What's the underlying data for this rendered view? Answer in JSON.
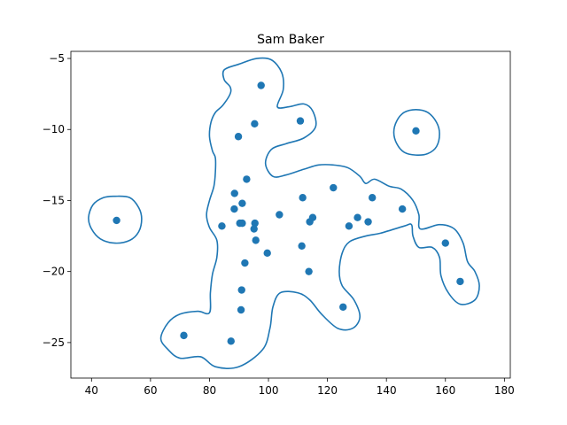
{
  "chart_data": {
    "type": "scatter",
    "title": "Sam Baker",
    "xlabel": "",
    "ylabel": "",
    "xlim": [
      33,
      182
    ],
    "ylim": [
      -27.5,
      -4.5
    ],
    "xticks": [
      40,
      60,
      80,
      100,
      120,
      140,
      160,
      180
    ],
    "yticks": [
      -25,
      -20,
      -15,
      -10,
      -5
    ],
    "grid": false,
    "colors": {
      "points": "#1f77b4",
      "contour": "#1f77b4"
    },
    "points": [
      {
        "x": 48.5,
        "y": -16.4
      },
      {
        "x": 97.5,
        "y": -6.9
      },
      {
        "x": 110.8,
        "y": -9.4
      },
      {
        "x": 95.3,
        "y": -9.6
      },
      {
        "x": 89.8,
        "y": -10.5
      },
      {
        "x": 150.0,
        "y": -10.1
      },
      {
        "x": 92.6,
        "y": -13.5
      },
      {
        "x": 88.5,
        "y": -14.5
      },
      {
        "x": 91.1,
        "y": -15.2
      },
      {
        "x": 88.4,
        "y": -15.6
      },
      {
        "x": 84.2,
        "y": -16.8
      },
      {
        "x": 90.3,
        "y": -16.6
      },
      {
        "x": 91.1,
        "y": -16.6
      },
      {
        "x": 95.4,
        "y": -16.6
      },
      {
        "x": 95.1,
        "y": -17.0
      },
      {
        "x": 95.7,
        "y": -17.8
      },
      {
        "x": 99.6,
        "y": -18.7
      },
      {
        "x": 92.0,
        "y": -19.4
      },
      {
        "x": 103.7,
        "y": -16.0
      },
      {
        "x": 111.6,
        "y": -14.8
      },
      {
        "x": 122.0,
        "y": -14.1
      },
      {
        "x": 115.0,
        "y": -16.2
      },
      {
        "x": 114.0,
        "y": -16.5
      },
      {
        "x": 111.3,
        "y": -18.2
      },
      {
        "x": 113.7,
        "y": -20.0
      },
      {
        "x": 130.2,
        "y": -16.2
      },
      {
        "x": 127.3,
        "y": -16.8
      },
      {
        "x": 133.8,
        "y": -16.5
      },
      {
        "x": 135.2,
        "y": -14.8
      },
      {
        "x": 145.4,
        "y": -15.6
      },
      {
        "x": 160.0,
        "y": -18.0
      },
      {
        "x": 165.0,
        "y": -20.7
      },
      {
        "x": 90.9,
        "y": -21.3
      },
      {
        "x": 90.7,
        "y": -22.7
      },
      {
        "x": 125.3,
        "y": -22.5
      },
      {
        "x": 71.3,
        "y": -24.5
      },
      {
        "x": 87.3,
        "y": -24.9
      }
    ],
    "contours": [
      [
        [
          85.0,
          -5.8
        ],
        [
          90.0,
          -5.4
        ],
        [
          96.0,
          -5.0
        ],
        [
          101.0,
          -5.1
        ],
        [
          104.5,
          -6.0
        ],
        [
          105.0,
          -7.2
        ],
        [
          103.0,
          -8.4
        ],
        [
          107.0,
          -8.4
        ],
        [
          112.0,
          -8.2
        ],
        [
          115.0,
          -8.7
        ],
        [
          116.0,
          -9.8
        ],
        [
          112.0,
          -10.6
        ],
        [
          106.0,
          -11.0
        ],
        [
          101.0,
          -11.4
        ],
        [
          99.0,
          -12.4
        ],
        [
          101.5,
          -13.3
        ],
        [
          106.0,
          -13.2
        ],
        [
          112.0,
          -12.8
        ],
        [
          117.0,
          -12.5
        ],
        [
          122.0,
          -12.5
        ],
        [
          127.0,
          -12.7
        ],
        [
          131.0,
          -13.3
        ],
        [
          133.0,
          -13.8
        ],
        [
          136.0,
          -13.5
        ],
        [
          141.0,
          -14.0
        ],
        [
          145.0,
          -14.2
        ],
        [
          149.0,
          -15.0
        ],
        [
          151.0,
          -16.0
        ],
        [
          151.5,
          -17.0
        ],
        [
          158.0,
          -16.7
        ],
        [
          163.0,
          -17.0
        ],
        [
          166.0,
          -18.0
        ],
        [
          167.5,
          -19.3
        ],
        [
          170.0,
          -20.0
        ],
        [
          171.5,
          -21.0
        ],
        [
          170.0,
          -22.0
        ],
        [
          165.0,
          -22.3
        ],
        [
          161.0,
          -21.5
        ],
        [
          158.5,
          -20.3
        ],
        [
          158.0,
          -19.0
        ],
        [
          155.5,
          -18.3
        ],
        [
          151.0,
          -18.3
        ],
        [
          149.0,
          -17.5
        ],
        [
          148.5,
          -16.7
        ],
        [
          146.0,
          -16.8
        ],
        [
          138.0,
          -17.3
        ],
        [
          133.0,
          -17.5
        ],
        [
          127.5,
          -17.9
        ],
        [
          125.0,
          -18.7
        ],
        [
          124.0,
          -20.0
        ],
        [
          125.0,
          -21.0
        ],
        [
          129.0,
          -22.0
        ],
        [
          131.0,
          -23.2
        ],
        [
          128.5,
          -24.0
        ],
        [
          123.5,
          -24.0
        ],
        [
          118.0,
          -23.0
        ],
        [
          114.0,
          -22.0
        ],
        [
          110.0,
          -21.5
        ],
        [
          104.0,
          -21.5
        ],
        [
          101.5,
          -22.5
        ],
        [
          100.5,
          -24.0
        ],
        [
          98.0,
          -25.5
        ],
        [
          90.0,
          -26.7
        ],
        [
          82.0,
          -26.7
        ],
        [
          77.0,
          -26.0
        ],
        [
          70.0,
          -26.1
        ],
        [
          66.0,
          -25.5
        ],
        [
          63.5,
          -24.7
        ],
        [
          66.0,
          -23.6
        ],
        [
          70.0,
          -23.0
        ],
        [
          76.0,
          -22.8
        ],
        [
          80.0,
          -22.9
        ],
        [
          80.3,
          -21.5
        ],
        [
          81.0,
          -20.2
        ],
        [
          82.5,
          -19.0
        ],
        [
          82.5,
          -17.8
        ],
        [
          80.0,
          -16.9
        ],
        [
          79.0,
          -16.0
        ],
        [
          80.0,
          -15.0
        ],
        [
          81.5,
          -14.0
        ],
        [
          82.0,
          -13.0
        ],
        [
          82.0,
          -12.0
        ],
        [
          81.0,
          -11.5
        ],
        [
          80.0,
          -10.5
        ],
        [
          80.5,
          -9.5
        ],
        [
          82.0,
          -8.8
        ],
        [
          84.5,
          -8.3
        ],
        [
          87.0,
          -7.5
        ],
        [
          87.0,
          -7.0
        ],
        [
          85.0,
          -6.5
        ]
      ],
      [
        [
          48.0,
          -14.7
        ],
        [
          53.0,
          -14.8
        ],
        [
          56.0,
          -15.5
        ],
        [
          57.0,
          -16.3
        ],
        [
          56.0,
          -17.2
        ],
        [
          53.0,
          -17.8
        ],
        [
          48.0,
          -18.0
        ],
        [
          43.0,
          -17.7
        ],
        [
          40.0,
          -17.0
        ],
        [
          39.0,
          -16.2
        ],
        [
          40.5,
          -15.3
        ],
        [
          44.0,
          -14.8
        ]
      ],
      [
        [
          150.0,
          -8.6
        ],
        [
          154.0,
          -8.8
        ],
        [
          157.0,
          -9.5
        ],
        [
          158.0,
          -10.3
        ],
        [
          157.0,
          -11.2
        ],
        [
          154.0,
          -11.7
        ],
        [
          150.0,
          -11.8
        ],
        [
          146.0,
          -11.6
        ],
        [
          143.5,
          -11.0
        ],
        [
          142.5,
          -10.2
        ],
        [
          143.5,
          -9.4
        ],
        [
          146.0,
          -8.8
        ]
      ]
    ]
  }
}
